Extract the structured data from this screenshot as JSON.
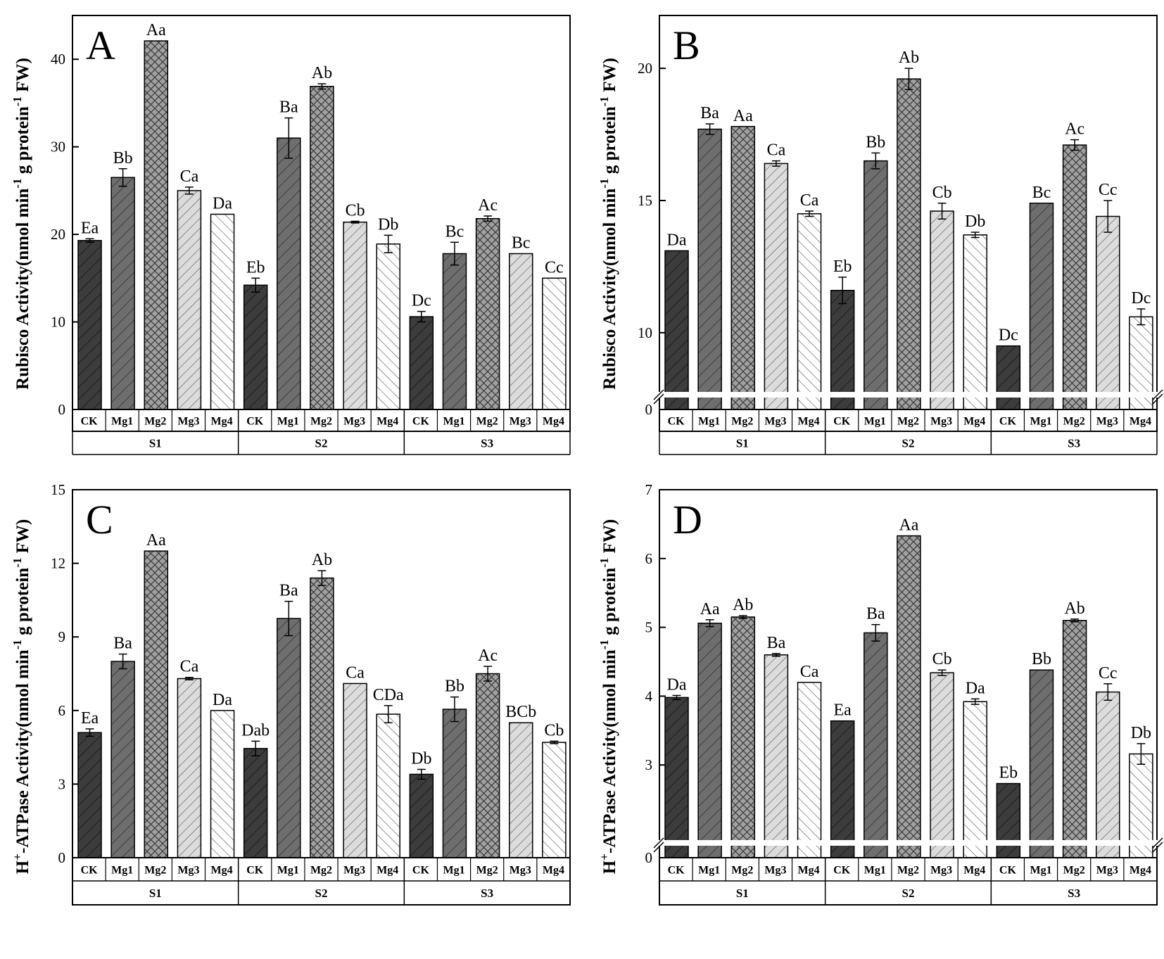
{
  "figure": {
    "categories": [
      "CK",
      "Mg1",
      "Mg2",
      "Mg3",
      "Mg4"
    ],
    "stages": [
      "S1",
      "S2",
      "S3"
    ]
  },
  "colors": {
    "CK": "#3c3c3c",
    "Mg1": "#6e6e6e",
    "Mg2": "#a0a0a0",
    "Mg3": "#dcdcdc",
    "Mg4": "#ffffff"
  },
  "chart_data": [
    {
      "type": "bar",
      "panel": "A",
      "ylabel": "Rubisco Activity(nmol min-1 g protein-1 FW)",
      "ylim": [
        0,
        45
      ],
      "yticks": [
        0,
        10,
        20,
        30,
        40
      ],
      "axis_break": false,
      "series": [
        {
          "group": "S1",
          "values": [
            19.3,
            26.5,
            42.1,
            25.0,
            22.3
          ],
          "errors": [
            0.2,
            1.0,
            0.0,
            0.4,
            0.0
          ],
          "labels": [
            "Ea",
            "Bb",
            "Aa",
            "Ca",
            "Da"
          ]
        },
        {
          "group": "S2",
          "values": [
            14.2,
            31.0,
            36.9,
            21.4,
            18.9
          ],
          "errors": [
            0.8,
            2.3,
            0.3,
            0.1,
            1.0
          ],
          "labels": [
            "Eb",
            "Ba",
            "Ab",
            "Cb",
            "Db"
          ]
        },
        {
          "group": "S3",
          "values": [
            10.6,
            17.8,
            21.8,
            17.8,
            15.0
          ],
          "errors": [
            0.6,
            1.3,
            0.3,
            0.0,
            0.0
          ],
          "labels": [
            "Dc",
            "Bc",
            "Ac",
            "Bc",
            "Cc"
          ]
        }
      ]
    },
    {
      "type": "bar",
      "panel": "B",
      "ylabel": "Rubisco Activity(nmol min-1 g protein-1 FW)",
      "ylim": [
        8,
        22
      ],
      "yticks": [
        10,
        15,
        20
      ],
      "axis_break": true,
      "break_tick": "0",
      "series": [
        {
          "group": "S1",
          "values": [
            13.1,
            17.7,
            17.8,
            16.4,
            14.5
          ],
          "errors": [
            0.0,
            0.2,
            0.0,
            0.1,
            0.1
          ],
          "labels": [
            "Da",
            "Ba",
            "Aa",
            "Ca",
            "Ca"
          ]
        },
        {
          "group": "S2",
          "values": [
            11.6,
            16.5,
            19.6,
            14.6,
            13.7
          ],
          "errors": [
            0.5,
            0.3,
            0.4,
            0.3,
            0.1
          ],
          "labels": [
            "Eb",
            "Bb",
            "Ab",
            "Cb",
            "Db"
          ]
        },
        {
          "group": "S3",
          "values": [
            9.5,
            14.9,
            17.1,
            14.4,
            10.6
          ],
          "errors": [
            0.0,
            0.0,
            0.2,
            0.6,
            0.3
          ],
          "labels": [
            "Dc",
            "Bc",
            "Ac",
            "Cc",
            "Dc"
          ]
        }
      ]
    },
    {
      "type": "bar",
      "panel": "C",
      "ylabel": "H+-ATPase Activity(nmol min-1 g protein-1 FW)",
      "ylim": [
        0,
        15
      ],
      "yticks": [
        0,
        3,
        6,
        9,
        12,
        15
      ],
      "axis_break": false,
      "series": [
        {
          "group": "S1",
          "values": [
            5.1,
            8.0,
            12.5,
            7.3,
            6.0
          ],
          "errors": [
            0.15,
            0.3,
            0.0,
            0.05,
            0.0
          ],
          "labels": [
            "Ea",
            "Ba",
            "Aa",
            "Ca",
            "Da"
          ]
        },
        {
          "group": "S2",
          "values": [
            4.45,
            9.75,
            11.4,
            7.1,
            5.85
          ],
          "errors": [
            0.3,
            0.7,
            0.3,
            0.0,
            0.35
          ],
          "labels": [
            "Dab",
            "Ba",
            "Ab",
            "Ca",
            "CDa"
          ]
        },
        {
          "group": "S3",
          "values": [
            3.4,
            6.05,
            7.5,
            5.5,
            4.7
          ],
          "errors": [
            0.2,
            0.5,
            0.3,
            0.0,
            0.05
          ],
          "labels": [
            "Db",
            "Bb",
            "Ac",
            "BCb",
            "Cb"
          ]
        }
      ]
    },
    {
      "type": "bar",
      "panel": "D",
      "ylabel": "H+-ATPase Activity(nmol min-1 g protein-1 FW)",
      "ylim": [
        2,
        7
      ],
      "yticks": [
        3,
        4,
        5,
        6,
        7
      ],
      "axis_break": true,
      "break_tick": "0",
      "series": [
        {
          "group": "S1",
          "values": [
            3.98,
            5.06,
            5.15,
            4.6,
            4.2
          ],
          "errors": [
            0.03,
            0.05,
            0.02,
            0.02,
            0.0
          ],
          "labels": [
            "Da",
            "Aa",
            "Ab",
            "Ba",
            "Ca"
          ]
        },
        {
          "group": "S2",
          "values": [
            3.64,
            4.92,
            6.33,
            4.34,
            3.92
          ],
          "errors": [
            0.0,
            0.12,
            0.0,
            0.04,
            0.04
          ],
          "labels": [
            "Ea",
            "Ba",
            "Aa",
            "Cb",
            "Da"
          ]
        },
        {
          "group": "S3",
          "values": [
            2.73,
            4.38,
            5.1,
            4.06,
            3.16
          ],
          "errors": [
            0.0,
            0.0,
            0.02,
            0.12,
            0.15
          ],
          "labels": [
            "Eb",
            "Bb",
            "Ab",
            "Cc",
            "Db"
          ]
        }
      ]
    }
  ]
}
